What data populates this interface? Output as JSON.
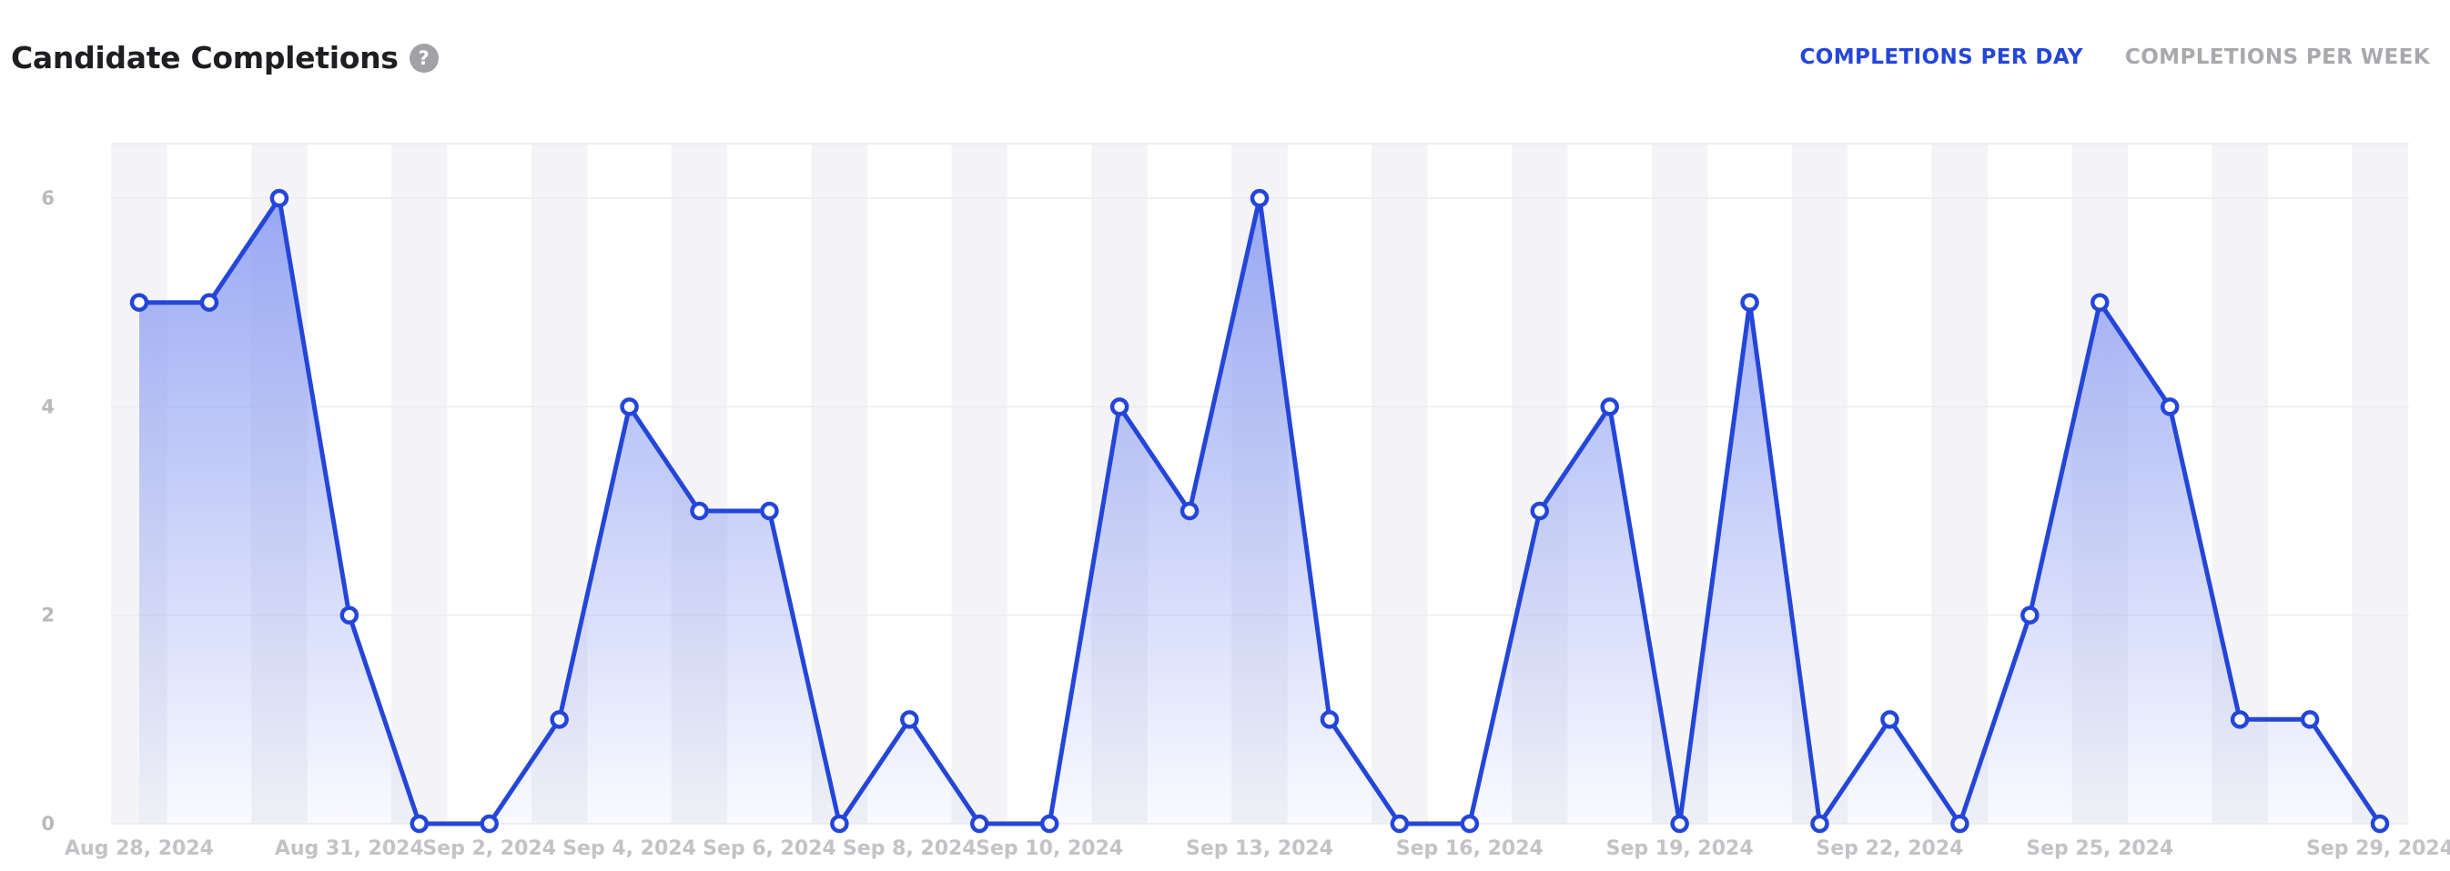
{
  "header": {
    "title": "Candidate Completions",
    "help_icon": "?",
    "tabs": [
      {
        "label": "COMPLETIONS PER DAY",
        "active": true
      },
      {
        "label": "COMPLETIONS PER WEEK",
        "active": false
      }
    ]
  },
  "colors": {
    "line": "#2446d8",
    "fill_top": "#8e9ff3",
    "band": "#f4f4f6",
    "grid": "#ececee"
  },
  "chart_data": {
    "type": "area",
    "title": "",
    "xlabel": "",
    "ylabel": "",
    "ylim": [
      0,
      6.6
    ],
    "yticks": [
      0,
      2,
      4,
      6
    ],
    "grid": true,
    "legend": "none",
    "x": [
      "Aug 28, 2024",
      "Aug 29, 2024",
      "Aug 30, 2024",
      "Aug 31, 2024",
      "Sep 1, 2024",
      "Sep 2, 2024",
      "Sep 3, 2024",
      "Sep 4, 2024",
      "Sep 5, 2024",
      "Sep 6, 2024",
      "Sep 7, 2024",
      "Sep 8, 2024",
      "Sep 9, 2024",
      "Sep 10, 2024",
      "Sep 11, 2024",
      "Sep 12, 2024",
      "Sep 13, 2024",
      "Sep 14, 2024",
      "Sep 15, 2024",
      "Sep 16, 2024",
      "Sep 17, 2024",
      "Sep 18, 2024",
      "Sep 19, 2024",
      "Sep 20, 2024",
      "Sep 21, 2024",
      "Sep 22, 2024",
      "Sep 23, 2024",
      "Sep 24, 2024",
      "Sep 25, 2024",
      "Sep 26, 2024",
      "Sep 27, 2024",
      "Sep 28, 2024",
      "Sep 29, 2024"
    ],
    "x_tick_labels": [
      "Aug 28, 2024",
      "Aug 31, 2024",
      "Sep 2, 2024",
      "Sep 4, 2024",
      "Sep 6, 2024",
      "Sep 8, 2024",
      "Sep 10, 2024",
      "Sep 13, 2024",
      "Sep 16, 2024",
      "Sep 19, 2024",
      "Sep 22, 2024",
      "Sep 25, 2024",
      "Sep 29, 2024"
    ],
    "series": [
      {
        "values": [
          5,
          5,
          6,
          2,
          0,
          0,
          1,
          4,
          3,
          3,
          0,
          1,
          0,
          0,
          4,
          3,
          6,
          1,
          0,
          0,
          3,
          4,
          0,
          5,
          0,
          1,
          0,
          2,
          5,
          4,
          1,
          1,
          0
        ]
      }
    ]
  }
}
